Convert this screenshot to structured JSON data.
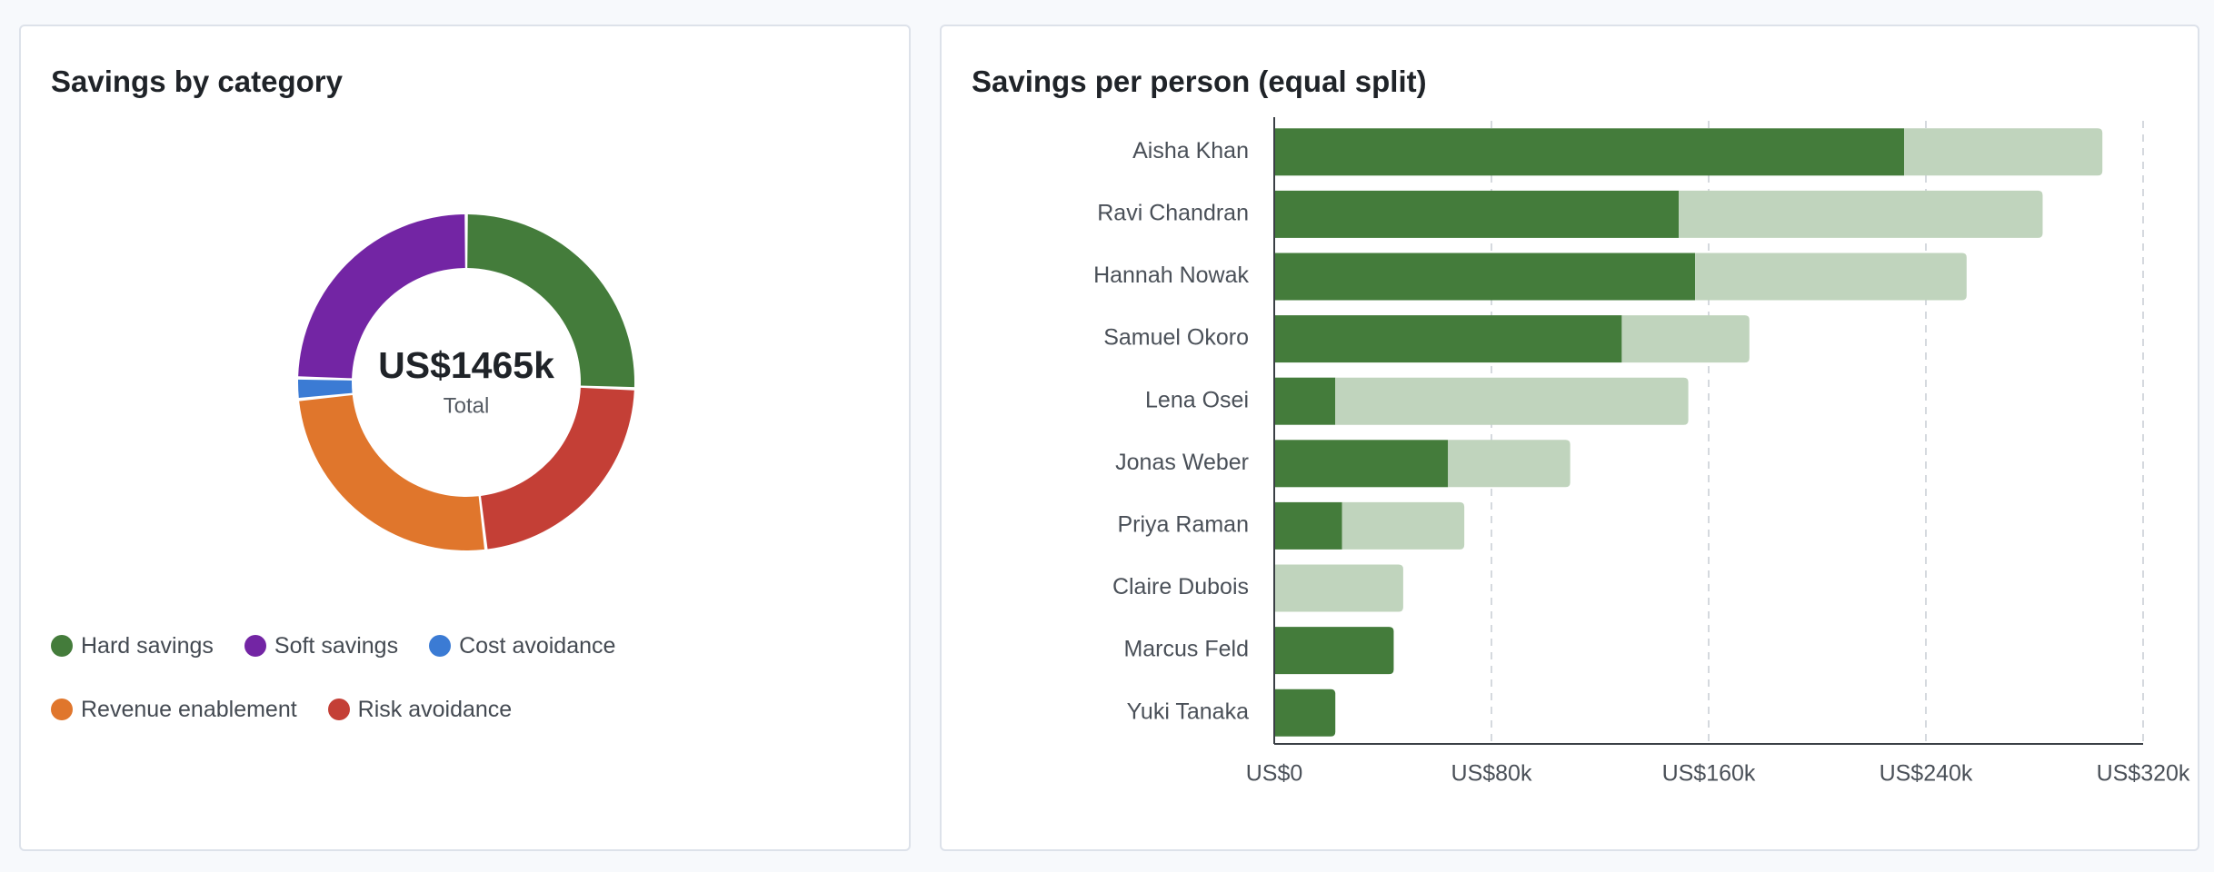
{
  "chart_data": [
    {
      "type": "pie",
      "title": "Savings by category",
      "center_value": "US$1465k",
      "center_label": "Total",
      "legend_position": "bottom",
      "categories": [
        "Hard savings",
        "Soft savings",
        "Cost avoidance",
        "Revenue enablement",
        "Risk avoidance"
      ],
      "slices": [
        {
          "name": "Hard savings",
          "value": 375,
          "color": "#447c3b"
        },
        {
          "name": "Risk avoidance",
          "value": 330,
          "color": "#c43f36"
        },
        {
          "name": "Revenue enablement",
          "value": 370,
          "color": "#e0762c"
        },
        {
          "name": "Cost avoidance",
          "value": 30,
          "color": "#3b7bd4"
        },
        {
          "name": "Soft savings",
          "value": 360,
          "color": "#7325a4"
        }
      ],
      "legend": [
        {
          "name": "Hard savings",
          "color": "#447c3b"
        },
        {
          "name": "Soft savings",
          "color": "#7325a4"
        },
        {
          "name": "Cost avoidance",
          "color": "#3b7bd4"
        },
        {
          "name": "Revenue enablement",
          "color": "#e0762c"
        },
        {
          "name": "Risk avoidance",
          "color": "#c43f36"
        }
      ]
    },
    {
      "type": "bar",
      "orientation": "horizontal",
      "stacked": true,
      "title": "Savings per person (equal split)",
      "categories": [
        "Aisha Khan",
        "Ravi Chandran",
        "Hannah Nowak",
        "Samuel Okoro",
        "Lena Osei",
        "Jonas Weber",
        "Priya Raman",
        "Claire Dubois",
        "Marcus Feld",
        "Yuki Tanaka"
      ],
      "series": [
        {
          "color": "#447c3b",
          "values": [
            232,
            149,
            155,
            128,
            22.5,
            64,
            25,
            0,
            44,
            22.5
          ]
        },
        {
          "color": "#c0d4bd",
          "values": [
            73,
            134,
            100,
            47,
            130,
            45,
            45,
            47.5,
            0,
            0
          ]
        }
      ],
      "xlim": [
        0,
        320
      ],
      "xticks": [
        0,
        80,
        160,
        240,
        320
      ],
      "xtick_labels": [
        "US$0",
        "US$80k",
        "US$160k",
        "US$240k",
        "US$320k"
      ],
      "grid": "vertical-dashed"
    }
  ]
}
